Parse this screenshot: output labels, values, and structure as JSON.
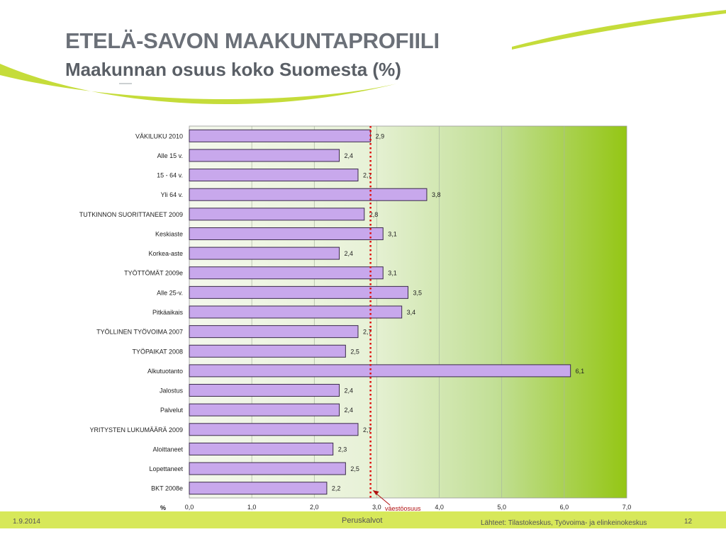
{
  "slide": {
    "title": "ETELÄ-SAVON MAAKUNTAPROFIILI",
    "subtitle": "Maakunnan osuus koko Suomesta (%)",
    "footer_date": "1.9.2014",
    "footer_center": "Peruskalvot",
    "footer_source": "Lähteet: Tilastokeskus, Työvoima- ja elinkeinokeskus",
    "page_number": "12"
  },
  "colors": {
    "bar_fill": "#c8a8ec",
    "bar_stroke": "#3a2a4a",
    "reference_line": "#e01010",
    "gradient_start": "#f2f7e8",
    "gradient_end": "#94c614",
    "accent_green": "#c5dc3a",
    "footer_band": "#d7e85a"
  },
  "chart_data": {
    "type": "bar",
    "orientation": "horizontal",
    "categories": [
      "VÄKILUKU 2010",
      "Alle 15 v.",
      "15 - 64 v.",
      "Yli 64 v.",
      "TUTKINNON SUORITTANEET 2009",
      "Keskiaste",
      "Korkea-aste",
      "TYÖTTÖMÄT 2009e",
      "Alle 25-v.",
      "Pitkäaikais",
      "TYÖLLINEN TYÖVOIMA 2007",
      "TYÖPAIKAT 2008",
      "Alkutuotanto",
      "Jalostus",
      "Palvelut",
      "YRITYSTEN LUKUMÄÄRÄ 2009",
      "Aloittaneet",
      "Lopettaneet",
      "BKT 2008e"
    ],
    "values": [
      2.9,
      2.4,
      2.7,
      3.8,
      2.8,
      3.1,
      2.4,
      3.1,
      3.5,
      3.4,
      2.7,
      2.5,
      6.1,
      2.4,
      2.4,
      2.7,
      2.3,
      2.5,
      2.2
    ],
    "value_labels": [
      "2,9",
      "2,4",
      "2,7",
      "3,8",
      "2,8",
      "3,1",
      "2,4",
      "3,1",
      "3,5",
      "3,4",
      "2,7",
      "2,5",
      "6,1",
      "2,4",
      "2,4",
      "2,7",
      "2,3",
      "2,5",
      "2,2"
    ],
    "xlim": [
      0,
      7
    ],
    "xticks": [
      "0,0",
      "1,0",
      "2,0",
      "3,0",
      "4,0",
      "5,0",
      "6,0",
      "7,0"
    ],
    "x_unit_label": "%",
    "reference_line": {
      "value": 2.9,
      "label": "väestöosuus"
    },
    "grid": true
  }
}
